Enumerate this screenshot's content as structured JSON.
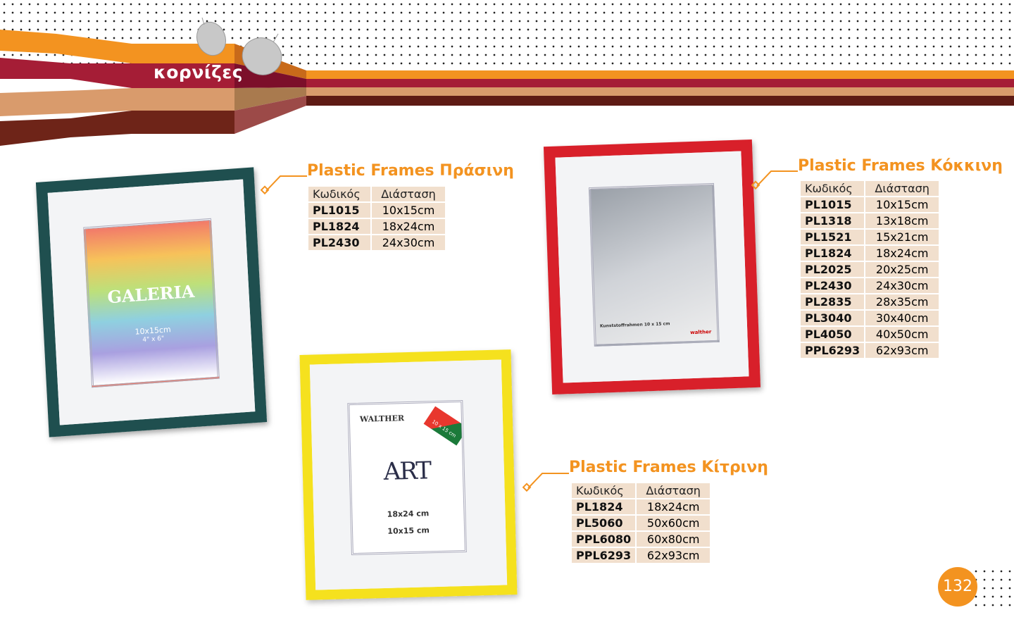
{
  "header": {
    "section_title": "κορνίζες"
  },
  "colors": {
    "orange": "#f39320",
    "crimson": "#a51d36",
    "tan": "#d99b6c",
    "brown": "#6e2418",
    "table_bg": "#f1dfcd"
  },
  "products": [
    {
      "title": "Plastic Frames Πράσινη",
      "frame_color": "#1f4f4f",
      "columns": [
        "Κωδικός",
        "Διάσταση"
      ],
      "rows": [
        [
          "PL1015",
          "10x15cm"
        ],
        [
          "PL1824",
          "18x24cm"
        ],
        [
          "PL2430",
          "24x30cm"
        ]
      ],
      "insert": {
        "brand": "GALERIA",
        "size": "10x15cm",
        "size_in": "4\" x 6\""
      }
    },
    {
      "title": "Plastic Frames Κόκκινη",
      "frame_color": "#d8202a",
      "columns": [
        "Κωδικός",
        "Διάσταση"
      ],
      "rows": [
        [
          "PL1015",
          "10x15cm"
        ],
        [
          "PL1318",
          "13x18cm"
        ],
        [
          "PL1521",
          "15x21cm"
        ],
        [
          "PL1824",
          "18x24cm"
        ],
        [
          "PL2025",
          "20x25cm"
        ],
        [
          "PL2430",
          "24x30cm"
        ],
        [
          "PL2835",
          "28x35cm"
        ],
        [
          "PL3040",
          "30x40cm"
        ],
        [
          "PL4050",
          "40x50cm"
        ],
        [
          "PPL6293",
          "62x93cm"
        ]
      ],
      "insert": {
        "caption": "Kunststoffrahmen 10 x 15 cm",
        "brand": "walther"
      }
    },
    {
      "title": "Plastic Frames Κίτρινη",
      "frame_color": "#f5e11e",
      "columns": [
        "Κωδικός",
        "Διάσταση"
      ],
      "rows": [
        [
          "PL1824",
          "18x24cm"
        ],
        [
          "PL5060",
          "50x60cm"
        ],
        [
          "PPL6080",
          "60x80cm"
        ],
        [
          "PPL6293",
          "62x93cm"
        ]
      ],
      "insert": {
        "brand": "WALTHER",
        "logo": "ART",
        "size": "18x24 cm",
        "photo_size": "10x15 cm",
        "corner": "10 x 15 cm"
      }
    }
  ],
  "page_number": "132"
}
